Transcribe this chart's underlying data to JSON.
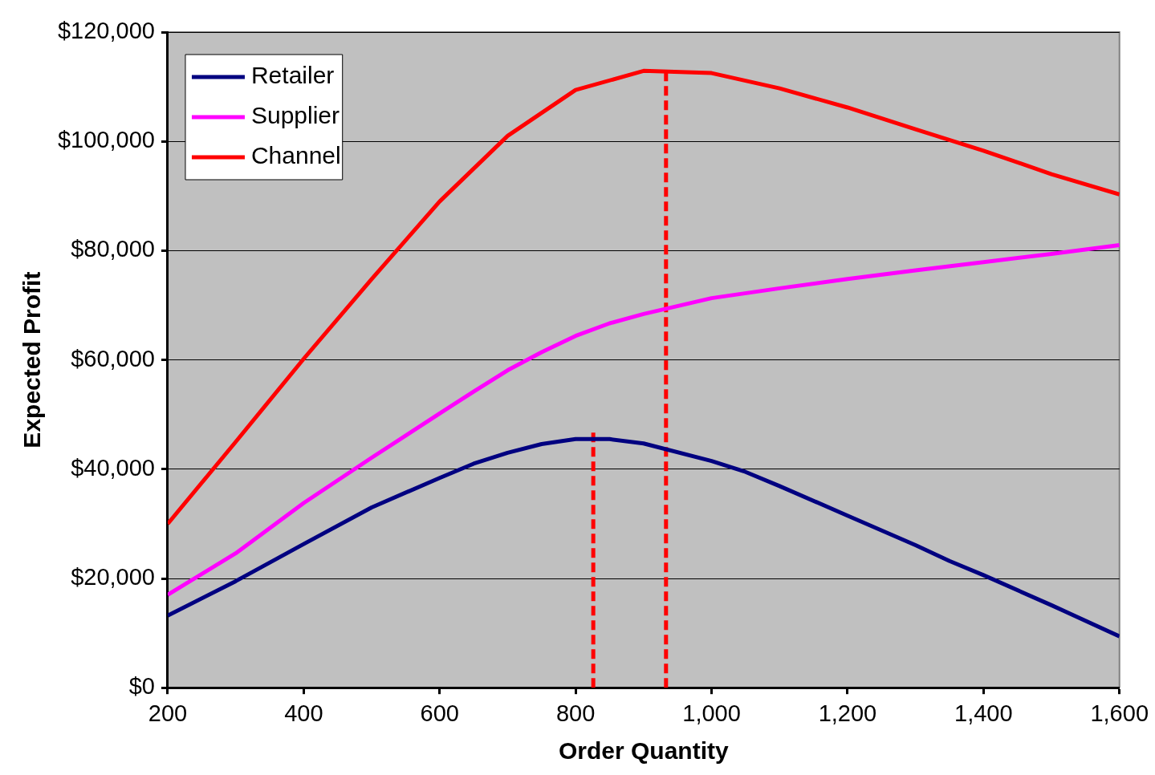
{
  "chart_data": {
    "type": "line",
    "xlabel": "Order Quantity",
    "ylabel": "Expected Profit",
    "xlim": [
      200,
      1600
    ],
    "xticks": [
      200,
      400,
      600,
      800,
      {
        "value": 1000,
        "label": "1,000"
      },
      {
        "value": 1200,
        "label": "1,200"
      },
      {
        "value": 1400,
        "label": "1,400"
      },
      {
        "value": 1600,
        "label": "1,600"
      }
    ],
    "ylim": [
      0,
      120000
    ],
    "yticks": [
      {
        "value": 0,
        "label": "$0"
      },
      {
        "value": 20000,
        "label": "$20,000"
      },
      {
        "value": 40000,
        "label": "$40,000"
      },
      {
        "value": 60000,
        "label": "$60,000"
      },
      {
        "value": 80000,
        "label": "$80,000"
      },
      {
        "value": 100000,
        "label": "$100,000"
      },
      {
        "value": 120000,
        "label": "$120,000"
      }
    ],
    "grid": "y",
    "legend": "top left",
    "marker": "none",
    "series": [
      {
        "name": "Retailer",
        "color": "#000080",
        "x": [
          200,
          300,
          400,
          500,
          600,
          650,
          700,
          750,
          800,
          850,
          900,
          1000,
          1050,
          1100,
          1200,
          1300,
          1350,
          1400,
          1500,
          1600
        ],
        "values": [
          13200,
          19500,
          26300,
          33000,
          38400,
          41000,
          43000,
          44600,
          45500,
          45500,
          44700,
          41500,
          39500,
          36900,
          31500,
          26100,
          23200,
          20600,
          15100,
          9400
        ]
      },
      {
        "name": "Supplier",
        "color": "#ff00ff",
        "x": [
          200,
          300,
          400,
          500,
          600,
          650,
          700,
          750,
          800,
          850,
          900,
          1000,
          1100,
          1200,
          1300,
          1400,
          1500,
          1600
        ],
        "values": [
          17000,
          24600,
          33800,
          42100,
          50200,
          54200,
          58100,
          61400,
          64400,
          66700,
          68400,
          71300,
          73100,
          74800,
          76400,
          77900,
          79400,
          81000
        ]
      },
      {
        "name": "Channel",
        "color": "#ff0000",
        "x": [
          200,
          300,
          400,
          500,
          600,
          700,
          800,
          900,
          1000,
          1100,
          1200,
          1300,
          1400,
          1500,
          1600
        ],
        "values": [
          30000,
          45000,
          60200,
          74800,
          89000,
          101000,
          109400,
          112900,
          112500,
          109700,
          106200,
          102200,
          98300,
          94000,
          90300
        ]
      },
      {
        "color": "#ff0000",
        "line_style": "dashed",
        "x": [
          826,
          826
        ],
        "values": [
          0,
          47000
        ]
      },
      {
        "color": "#ff0000",
        "line_style": "dashed",
        "x": [
          933,
          933
        ],
        "values": [
          0,
          112900
        ]
      }
    ]
  }
}
